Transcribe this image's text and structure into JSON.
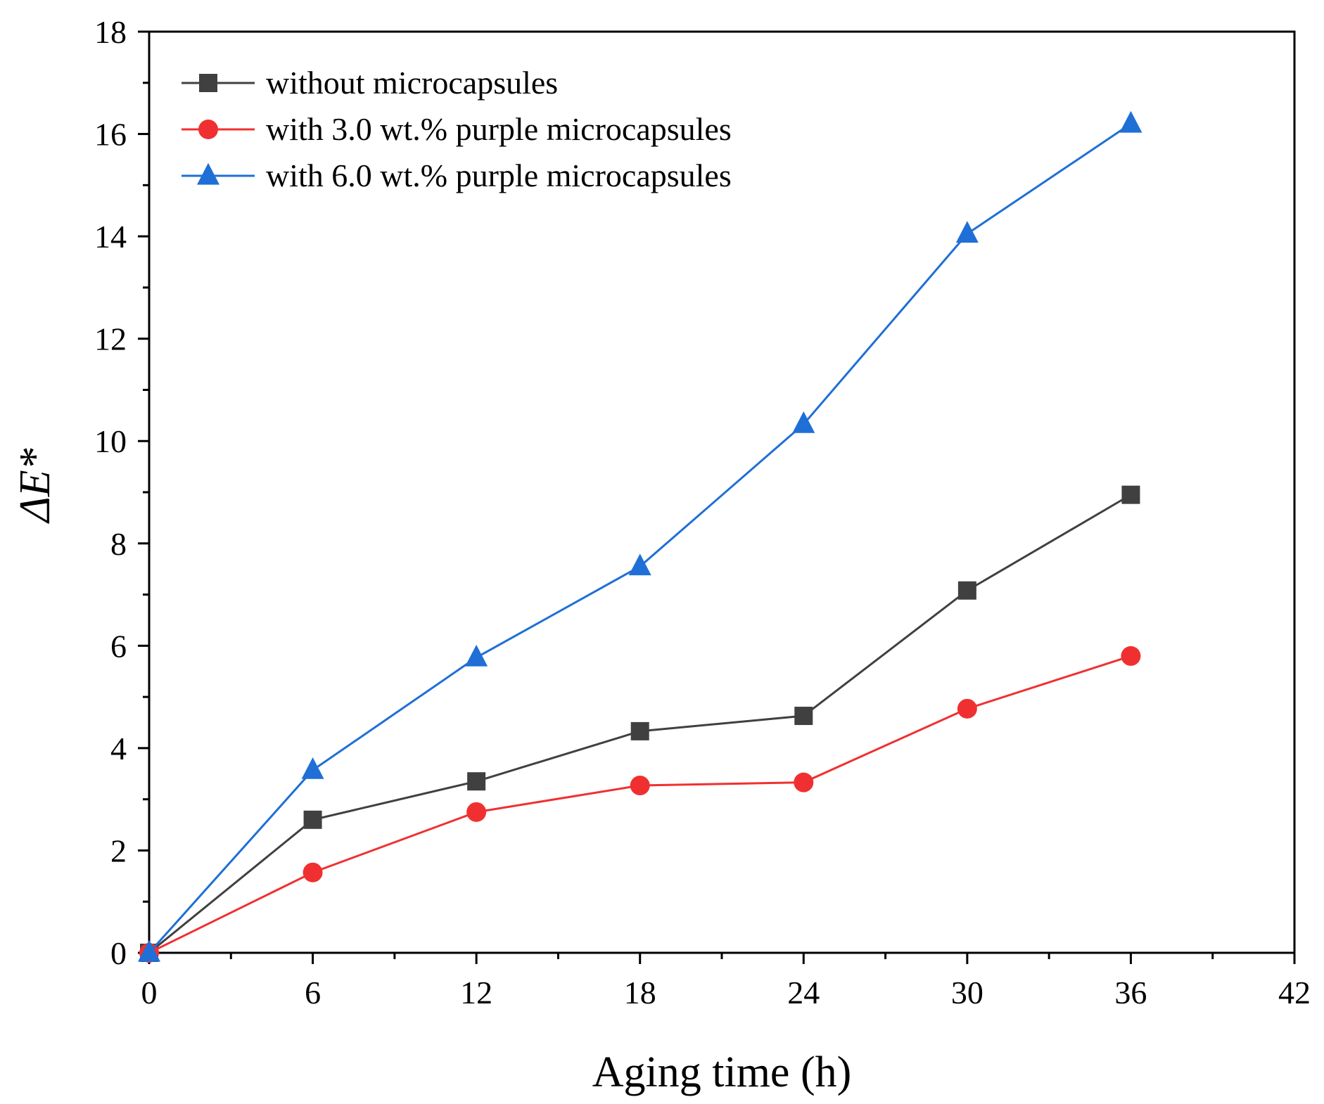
{
  "chart_data": {
    "type": "line",
    "title": "",
    "xlabel": "Aging time (h)",
    "ylabel": "ΔE*",
    "xlim": [
      0,
      42
    ],
    "ylim": [
      0,
      18
    ],
    "xticks": [
      "0",
      "6",
      "12",
      "18",
      "24",
      "30",
      "36",
      "42"
    ],
    "yticks": [
      "0",
      "2",
      "4",
      "6",
      "8",
      "10",
      "12",
      "14",
      "16",
      "18"
    ],
    "grid": false,
    "legend_position": "top-left",
    "x": [
      0,
      6,
      12,
      18,
      24,
      30,
      36
    ],
    "series": [
      {
        "name": "without microcapsules",
        "marker": "square",
        "color": "#404040",
        "values": [
          0,
          2.6,
          3.35,
          4.33,
          4.63,
          7.08,
          8.95
        ]
      },
      {
        "name": "with 3.0 wt.% purple microcapsules",
        "marker": "circle",
        "color": "#f03030",
        "values": [
          0,
          1.57,
          2.75,
          3.27,
          3.33,
          4.77,
          5.8
        ]
      },
      {
        "name": "with 6.0 wt.% purple microcapsules",
        "marker": "triangle",
        "color": "#1f6fd6",
        "values": [
          0,
          3.57,
          5.77,
          7.55,
          10.33,
          14.05,
          16.2
        ]
      }
    ]
  }
}
